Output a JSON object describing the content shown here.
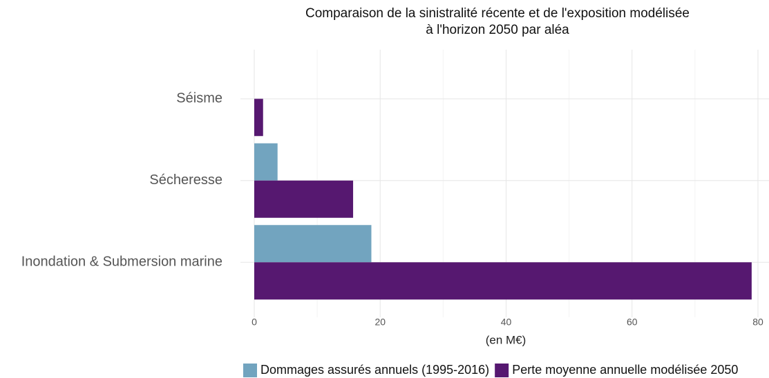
{
  "chart_data": {
    "type": "barh",
    "title": "Comparaison de la sinistralité récente et de l'exposition modélisée",
    "subtitle": "à l'horizon 2050 par aléa",
    "xlabel": "(en M€)",
    "categories": [
      "Séisme",
      "Sécheresse",
      "Inondation & Submersion marine"
    ],
    "series": [
      {
        "name": "Dommages assurés annuels (1995-2016)",
        "color": "#72a4bf",
        "values": [
          null,
          3.7,
          18.6
        ]
      },
      {
        "name": "Perte moyenne annuelle modélisée 2050",
        "color": "#561870",
        "values": [
          1.4,
          15.7,
          79.0
        ]
      }
    ],
    "xlim": [
      0,
      80
    ],
    "xticks": [
      0,
      20,
      40,
      60,
      80
    ],
    "xminorticks": [
      10,
      30,
      50,
      70
    ],
    "grid": true,
    "legend": "bottom"
  }
}
